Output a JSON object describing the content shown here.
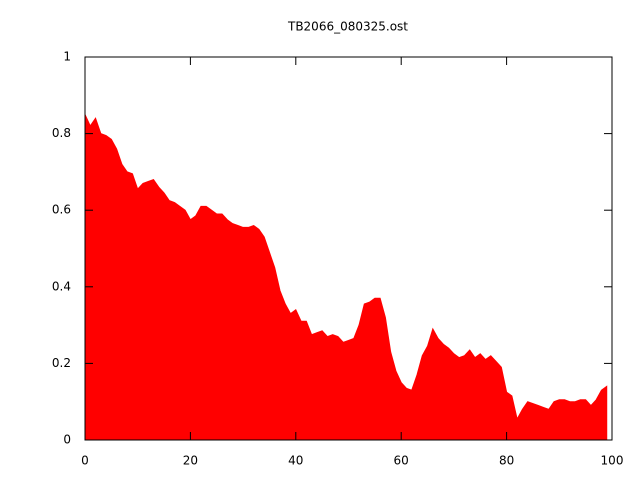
{
  "chart_data": {
    "type": "area",
    "title": "TB2066_080325.ost",
    "color": "#ff0000",
    "x": [
      0,
      1,
      2,
      3,
      4,
      5,
      6,
      7,
      8,
      9,
      10,
      11,
      12,
      13,
      14,
      15,
      16,
      17,
      18,
      19,
      20,
      21,
      22,
      23,
      24,
      25,
      26,
      27,
      28,
      29,
      30,
      31,
      32,
      33,
      34,
      35,
      36,
      37,
      38,
      39,
      40,
      41,
      42,
      43,
      44,
      45,
      46,
      47,
      48,
      49,
      50,
      51,
      52,
      53,
      54,
      55,
      56,
      57,
      58,
      59,
      60,
      61,
      62,
      63,
      64,
      65,
      66,
      67,
      68,
      69,
      70,
      71,
      72,
      73,
      74,
      75,
      76,
      77,
      78,
      79,
      80,
      81,
      82,
      83,
      84,
      85,
      86,
      87,
      88,
      89,
      90,
      91,
      92,
      93,
      94,
      95,
      96,
      97,
      98,
      99
    ],
    "values": [
      0.85,
      0.82,
      0.84,
      0.8,
      0.795,
      0.785,
      0.76,
      0.72,
      0.7,
      0.695,
      0.655,
      0.67,
      0.675,
      0.68,
      0.66,
      0.645,
      0.625,
      0.62,
      0.61,
      0.6,
      0.575,
      0.585,
      0.61,
      0.61,
      0.6,
      0.59,
      0.59,
      0.575,
      0.565,
      0.56,
      0.555,
      0.555,
      0.56,
      0.55,
      0.53,
      0.49,
      0.45,
      0.39,
      0.355,
      0.33,
      0.34,
      0.31,
      0.31,
      0.275,
      0.28,
      0.285,
      0.27,
      0.275,
      0.27,
      0.255,
      0.26,
      0.265,
      0.3,
      0.355,
      0.36,
      0.37,
      0.37,
      0.32,
      0.23,
      0.18,
      0.15,
      0.135,
      0.13,
      0.17,
      0.22,
      0.245,
      0.29,
      0.265,
      0.25,
      0.24,
      0.225,
      0.215,
      0.22,
      0.235,
      0.215,
      0.225,
      0.21,
      0.22,
      0.205,
      0.19,
      0.125,
      0.115,
      0.055,
      0.08,
      0.1,
      0.095,
      0.09,
      0.085,
      0.08,
      0.1,
      0.105,
      0.105,
      0.1,
      0.1,
      0.105,
      0.105,
      0.09,
      0.105,
      0.13,
      0.14
    ],
    "xlim": [
      0,
      100
    ],
    "xticks": [
      0,
      20,
      40,
      60,
      80,
      100
    ],
    "ylim": [
      0,
      1
    ],
    "yticks": [
      0,
      0.2,
      0.4,
      0.6,
      0.8,
      1
    ]
  }
}
